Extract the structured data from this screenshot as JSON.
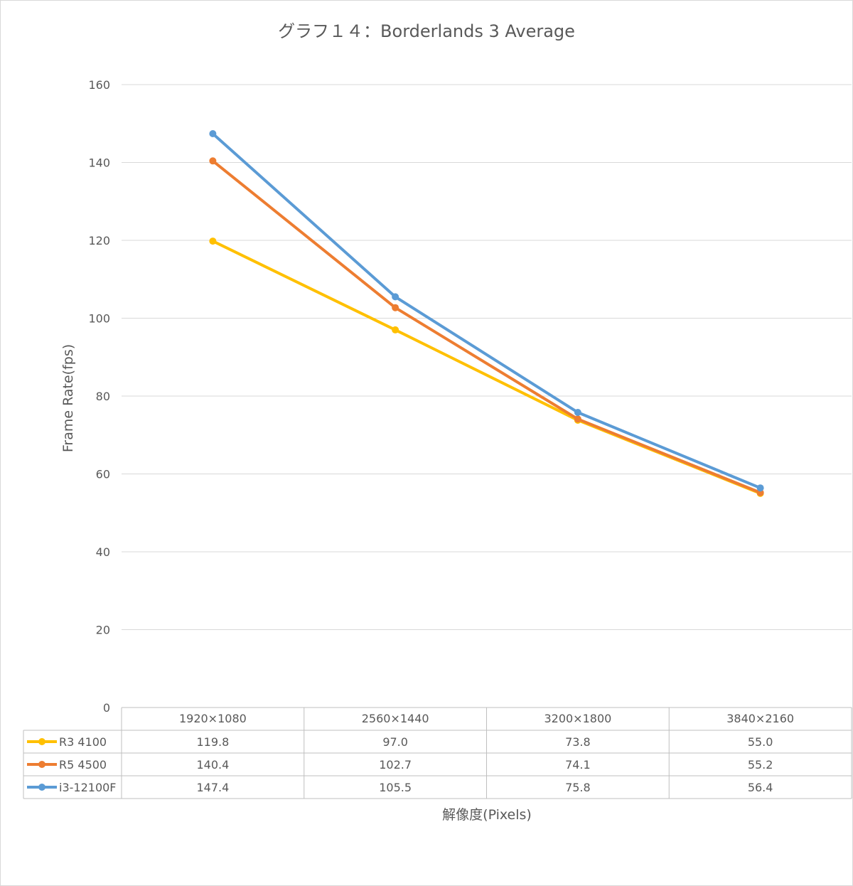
{
  "chart_data": {
    "type": "line",
    "title": "グラフ１４：Borderlands 3 Average",
    "xlabel": "解像度(Pixels)",
    "ylabel": "Frame Rate(fps)",
    "categories": [
      "1920×1080",
      "2560×1440",
      "3200×1800",
      "3840×2160"
    ],
    "ylim": [
      0,
      160
    ],
    "yticks": [
      0,
      20,
      40,
      60,
      80,
      100,
      120,
      140,
      160
    ],
    "grid": true,
    "legend": "data-table",
    "series": [
      {
        "name": "R3 4100",
        "color": "#FFC000",
        "values": [
          119.8,
          97.0,
          73.8,
          55.0
        ],
        "labels": [
          "119.8",
          "97.0",
          "73.8",
          "55.0"
        ]
      },
      {
        "name": "R5 4500",
        "color": "#ED7D31",
        "values": [
          140.4,
          102.7,
          74.1,
          55.2
        ],
        "labels": [
          "140.4",
          "102.7",
          "74.1",
          "55.2"
        ]
      },
      {
        "name": "i3-12100F",
        "color": "#5B9BD5",
        "values": [
          147.4,
          105.5,
          75.8,
          56.4
        ],
        "labels": [
          "147.4",
          "105.5",
          "75.8",
          "56.4"
        ]
      }
    ]
  }
}
